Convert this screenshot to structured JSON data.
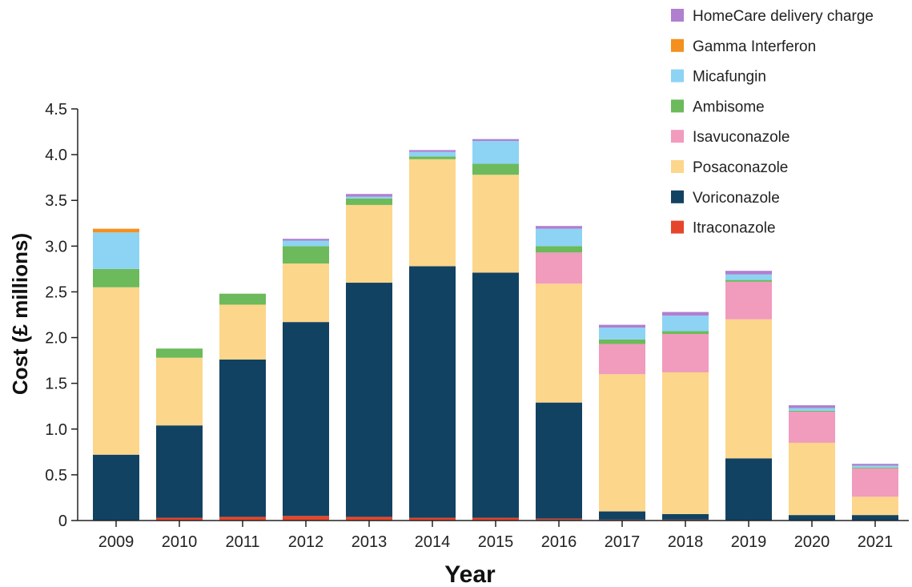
{
  "chart_data": {
    "type": "bar",
    "stacked": true,
    "title": "",
    "xlabel": "Year",
    "ylabel": "Cost (£ millions)",
    "ylim": [
      0,
      4.5
    ],
    "yticks": [
      0,
      0.5,
      1.0,
      1.5,
      2.0,
      2.5,
      3.0,
      3.5,
      4.0,
      4.5
    ],
    "ytick_labels": [
      "0",
      "0.5",
      "1.0",
      "1.5",
      "2.0",
      "2.5",
      "3.0",
      "3.5",
      "4.0",
      "4.5"
    ],
    "grid": false,
    "legend_position": "top-right",
    "categories": [
      "2009",
      "2010",
      "2011",
      "2012",
      "2013",
      "2014",
      "2015",
      "2016",
      "2017",
      "2018",
      "2019",
      "2020",
      "2021"
    ],
    "series": [
      {
        "name": "Itraconazole",
        "color": "#e5462b",
        "values": [
          0.0,
          0.03,
          0.04,
          0.05,
          0.04,
          0.03,
          0.03,
          0.02,
          0.01,
          0.01,
          0.0,
          0.0,
          0.0
        ]
      },
      {
        "name": "Voriconazole",
        "color": "#124262",
        "values": [
          0.72,
          1.01,
          1.72,
          2.12,
          2.56,
          2.75,
          2.68,
          1.27,
          0.09,
          0.06,
          0.68,
          0.06,
          0.06
        ]
      },
      {
        "name": "Posaconazole",
        "color": "#fcd68b",
        "values": [
          1.83,
          0.74,
          0.6,
          0.64,
          0.85,
          1.17,
          1.07,
          1.3,
          1.5,
          1.55,
          1.52,
          0.79,
          0.2
        ]
      },
      {
        "name": "Isavuconazole",
        "color": "#f19bbd",
        "values": [
          0.0,
          0.0,
          0.0,
          0.0,
          0.0,
          0.0,
          0.0,
          0.34,
          0.33,
          0.42,
          0.41,
          0.34,
          0.31
        ]
      },
      {
        "name": "Ambisome",
        "color": "#6cba5b",
        "values": [
          0.2,
          0.1,
          0.12,
          0.19,
          0.07,
          0.03,
          0.12,
          0.07,
          0.05,
          0.03,
          0.02,
          0.01,
          0.01
        ]
      },
      {
        "name": "Micafungin",
        "color": "#8dd3f4",
        "values": [
          0.4,
          0.0,
          0.0,
          0.06,
          0.02,
          0.05,
          0.25,
          0.19,
          0.13,
          0.17,
          0.06,
          0.03,
          0.02
        ]
      },
      {
        "name": "Gamma Interferon",
        "color": "#f4901e",
        "values": [
          0.04,
          0.0,
          0.0,
          0.0,
          0.0,
          0.0,
          0.0,
          0.0,
          0.0,
          0.0,
          0.0,
          0.0,
          0.0
        ]
      },
      {
        "name": "HomeCare delivery charge",
        "color": "#b07fcf",
        "values": [
          0.0,
          0.0,
          0.0,
          0.02,
          0.03,
          0.02,
          0.02,
          0.03,
          0.03,
          0.04,
          0.04,
          0.03,
          0.02
        ]
      }
    ]
  }
}
